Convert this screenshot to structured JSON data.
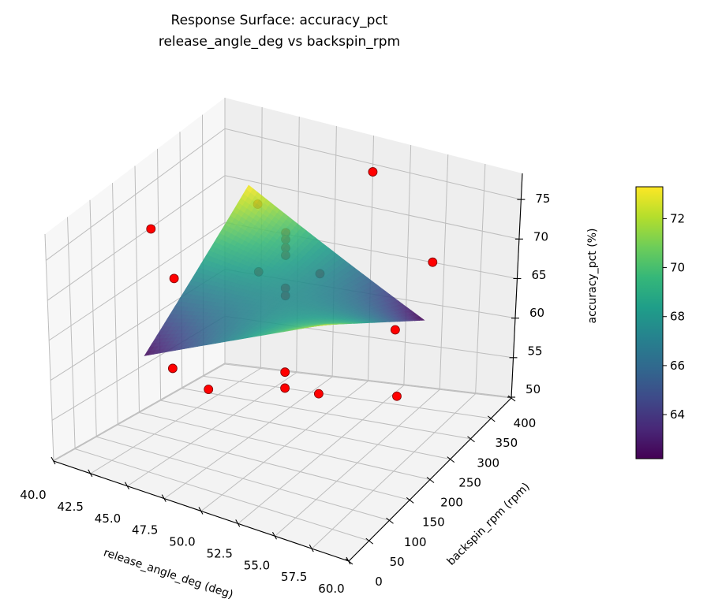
{
  "chart_data": {
    "type": "surface",
    "title_lines": [
      "Response Surface: accuracy_pct",
      "release_angle_deg vs backspin_rpm"
    ],
    "xlabel": "release_angle_deg (deg)",
    "ylabel": "backspin_rpm (rpm)",
    "zlabel": "accuracy_pct (%)",
    "xlim": [
      40,
      60
    ],
    "ylim": [
      0,
      400
    ],
    "zlim": [
      49.9,
      78.3
    ],
    "xticks": [
      "40.0",
      "42.5",
      "45.0",
      "47.5",
      "50.0",
      "52.5",
      "55.0",
      "57.5",
      "60.0"
    ],
    "yticks": [
      "0",
      "50",
      "100",
      "150",
      "200",
      "250",
      "300",
      "350",
      "400"
    ],
    "zticks": [
      "50",
      "55",
      "60",
      "65",
      "70",
      "75"
    ],
    "grid": true,
    "colormap": "viridis",
    "surface": {
      "x": [
        44,
        56
      ],
      "y": [
        80,
        320
      ],
      "z": [
        [
          62.4,
          72.5
        ],
        [
          73.3,
          62.2
        ]
      ]
    },
    "scatter": {
      "color": "#ff0000",
      "edge_color": "#7a0000",
      "points": [
        [
          50,
          400,
          74.1
        ],
        [
          41,
          200,
          71.5
        ],
        [
          57,
          300,
          70.6
        ],
        [
          44,
          150,
          69.0
        ],
        [
          56,
          250,
          64.2
        ],
        [
          45.3,
          100,
          60.8
        ],
        [
          47.7,
          100,
          59.5
        ],
        [
          50,
          200,
          58.7
        ],
        [
          50,
          200,
          56.8
        ],
        [
          52.3,
          200,
          57.1
        ],
        [
          57.6,
          200,
          59.1
        ],
        [
          45.2,
          300,
          72.4
        ],
        [
          50,
          200,
          75.3
        ],
        [
          50,
          200,
          74.5
        ],
        [
          50,
          200,
          73.5
        ],
        [
          50,
          200,
          72.6
        ],
        [
          48.2,
          200,
          69.8
        ],
        [
          52.3,
          200,
          71.5
        ],
        [
          50,
          200,
          68.7
        ],
        [
          50,
          200,
          67.8
        ]
      ]
    },
    "colorbar": {
      "range": [
        62.2,
        73.3
      ],
      "ticks": [
        "64",
        "66",
        "68",
        "70",
        "72"
      ]
    }
  }
}
